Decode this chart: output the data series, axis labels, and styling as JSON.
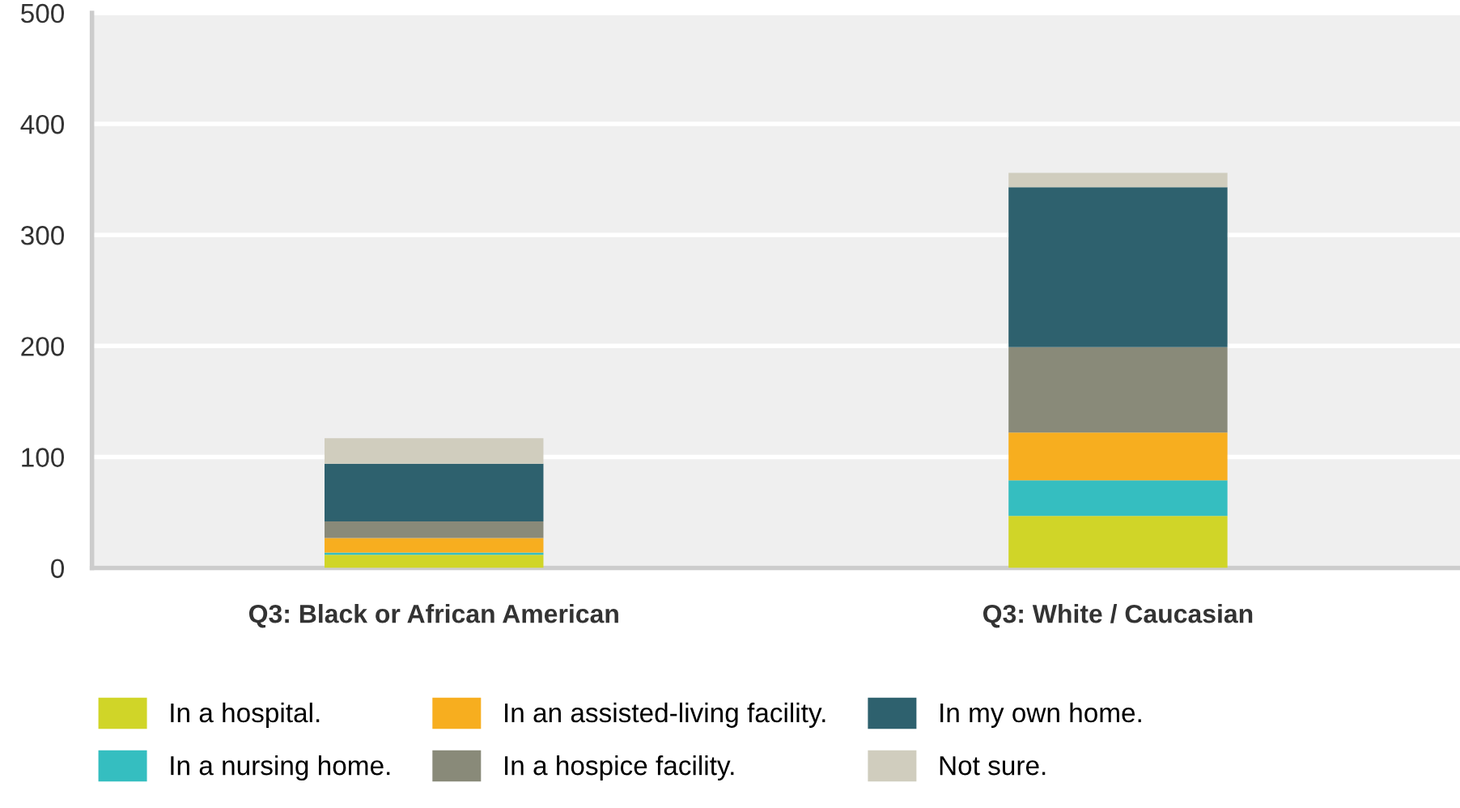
{
  "chart_data": {
    "type": "bar",
    "stacked": true,
    "categories": [
      "Q3: Black or African American",
      "Q3: White / Caucasian"
    ],
    "series": [
      {
        "name": "In a hospital.",
        "color": "#d0d528",
        "values": [
          12,
          47
        ]
      },
      {
        "name": "In a nursing home.",
        "color": "#35bec0",
        "values": [
          2,
          32
        ]
      },
      {
        "name": "In an assisted-living facility.",
        "color": "#f7ae1f",
        "values": [
          13,
          43
        ]
      },
      {
        "name": "In a hospice facility.",
        "color": "#898a79",
        "values": [
          15,
          77
        ]
      },
      {
        "name": "In my own home.",
        "color": "#2e616e",
        "values": [
          52,
          144
        ]
      },
      {
        "name": "Not sure.",
        "color": "#d0cdbe",
        "values": [
          23,
          13
        ]
      }
    ],
    "ylim": [
      0,
      500
    ],
    "yticks": [
      0,
      100,
      200,
      300,
      400,
      500
    ],
    "grid": "y",
    "legend": "bottom"
  }
}
